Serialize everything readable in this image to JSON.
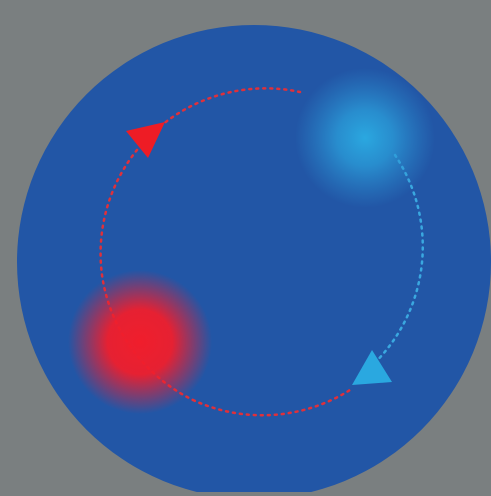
{
  "diagram": {
    "kind": "orbiting-particles",
    "colors": {
      "background": "#7a7f80",
      "disc": "#2256a6",
      "red_particle": "#f01e2c",
      "blue_particle": "#2aa0dc",
      "red_path": "#e0303a",
      "blue_path": "#3aa8e0"
    },
    "particles": [
      {
        "name": "red-particle",
        "color": "red"
      },
      {
        "name": "blue-particle",
        "color": "blue"
      }
    ],
    "arrows": [
      {
        "name": "red-arrow",
        "direction": "counter-clockwise"
      },
      {
        "name": "blue-arrow",
        "direction": "counter-clockwise"
      }
    ]
  }
}
